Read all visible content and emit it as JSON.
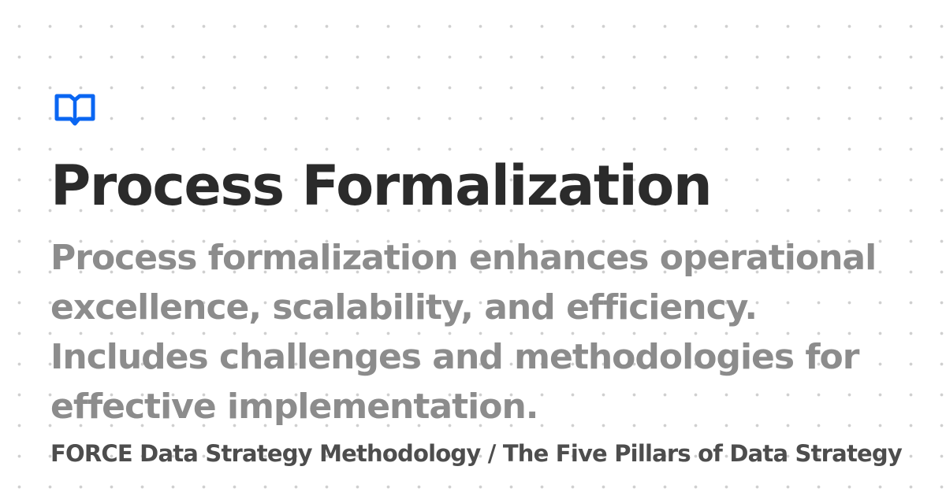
{
  "brand": {
    "logo_icon": "open-book-icon",
    "accent_color": "#0a66f2"
  },
  "page": {
    "title": "Process Formalization",
    "description": "Process formalization enhances operational excellence, scalability, and efficiency. Includes challenges and methodologies for effective implementation.",
    "breadcrumb": "FORCE Data Strategy Methodology / The Five Pillars of Data Strategy"
  },
  "colors": {
    "title": "#2b2b2b",
    "description": "#8c8c8c",
    "breadcrumb": "#4d4d4d",
    "background_dots": "#cfcfcf"
  }
}
